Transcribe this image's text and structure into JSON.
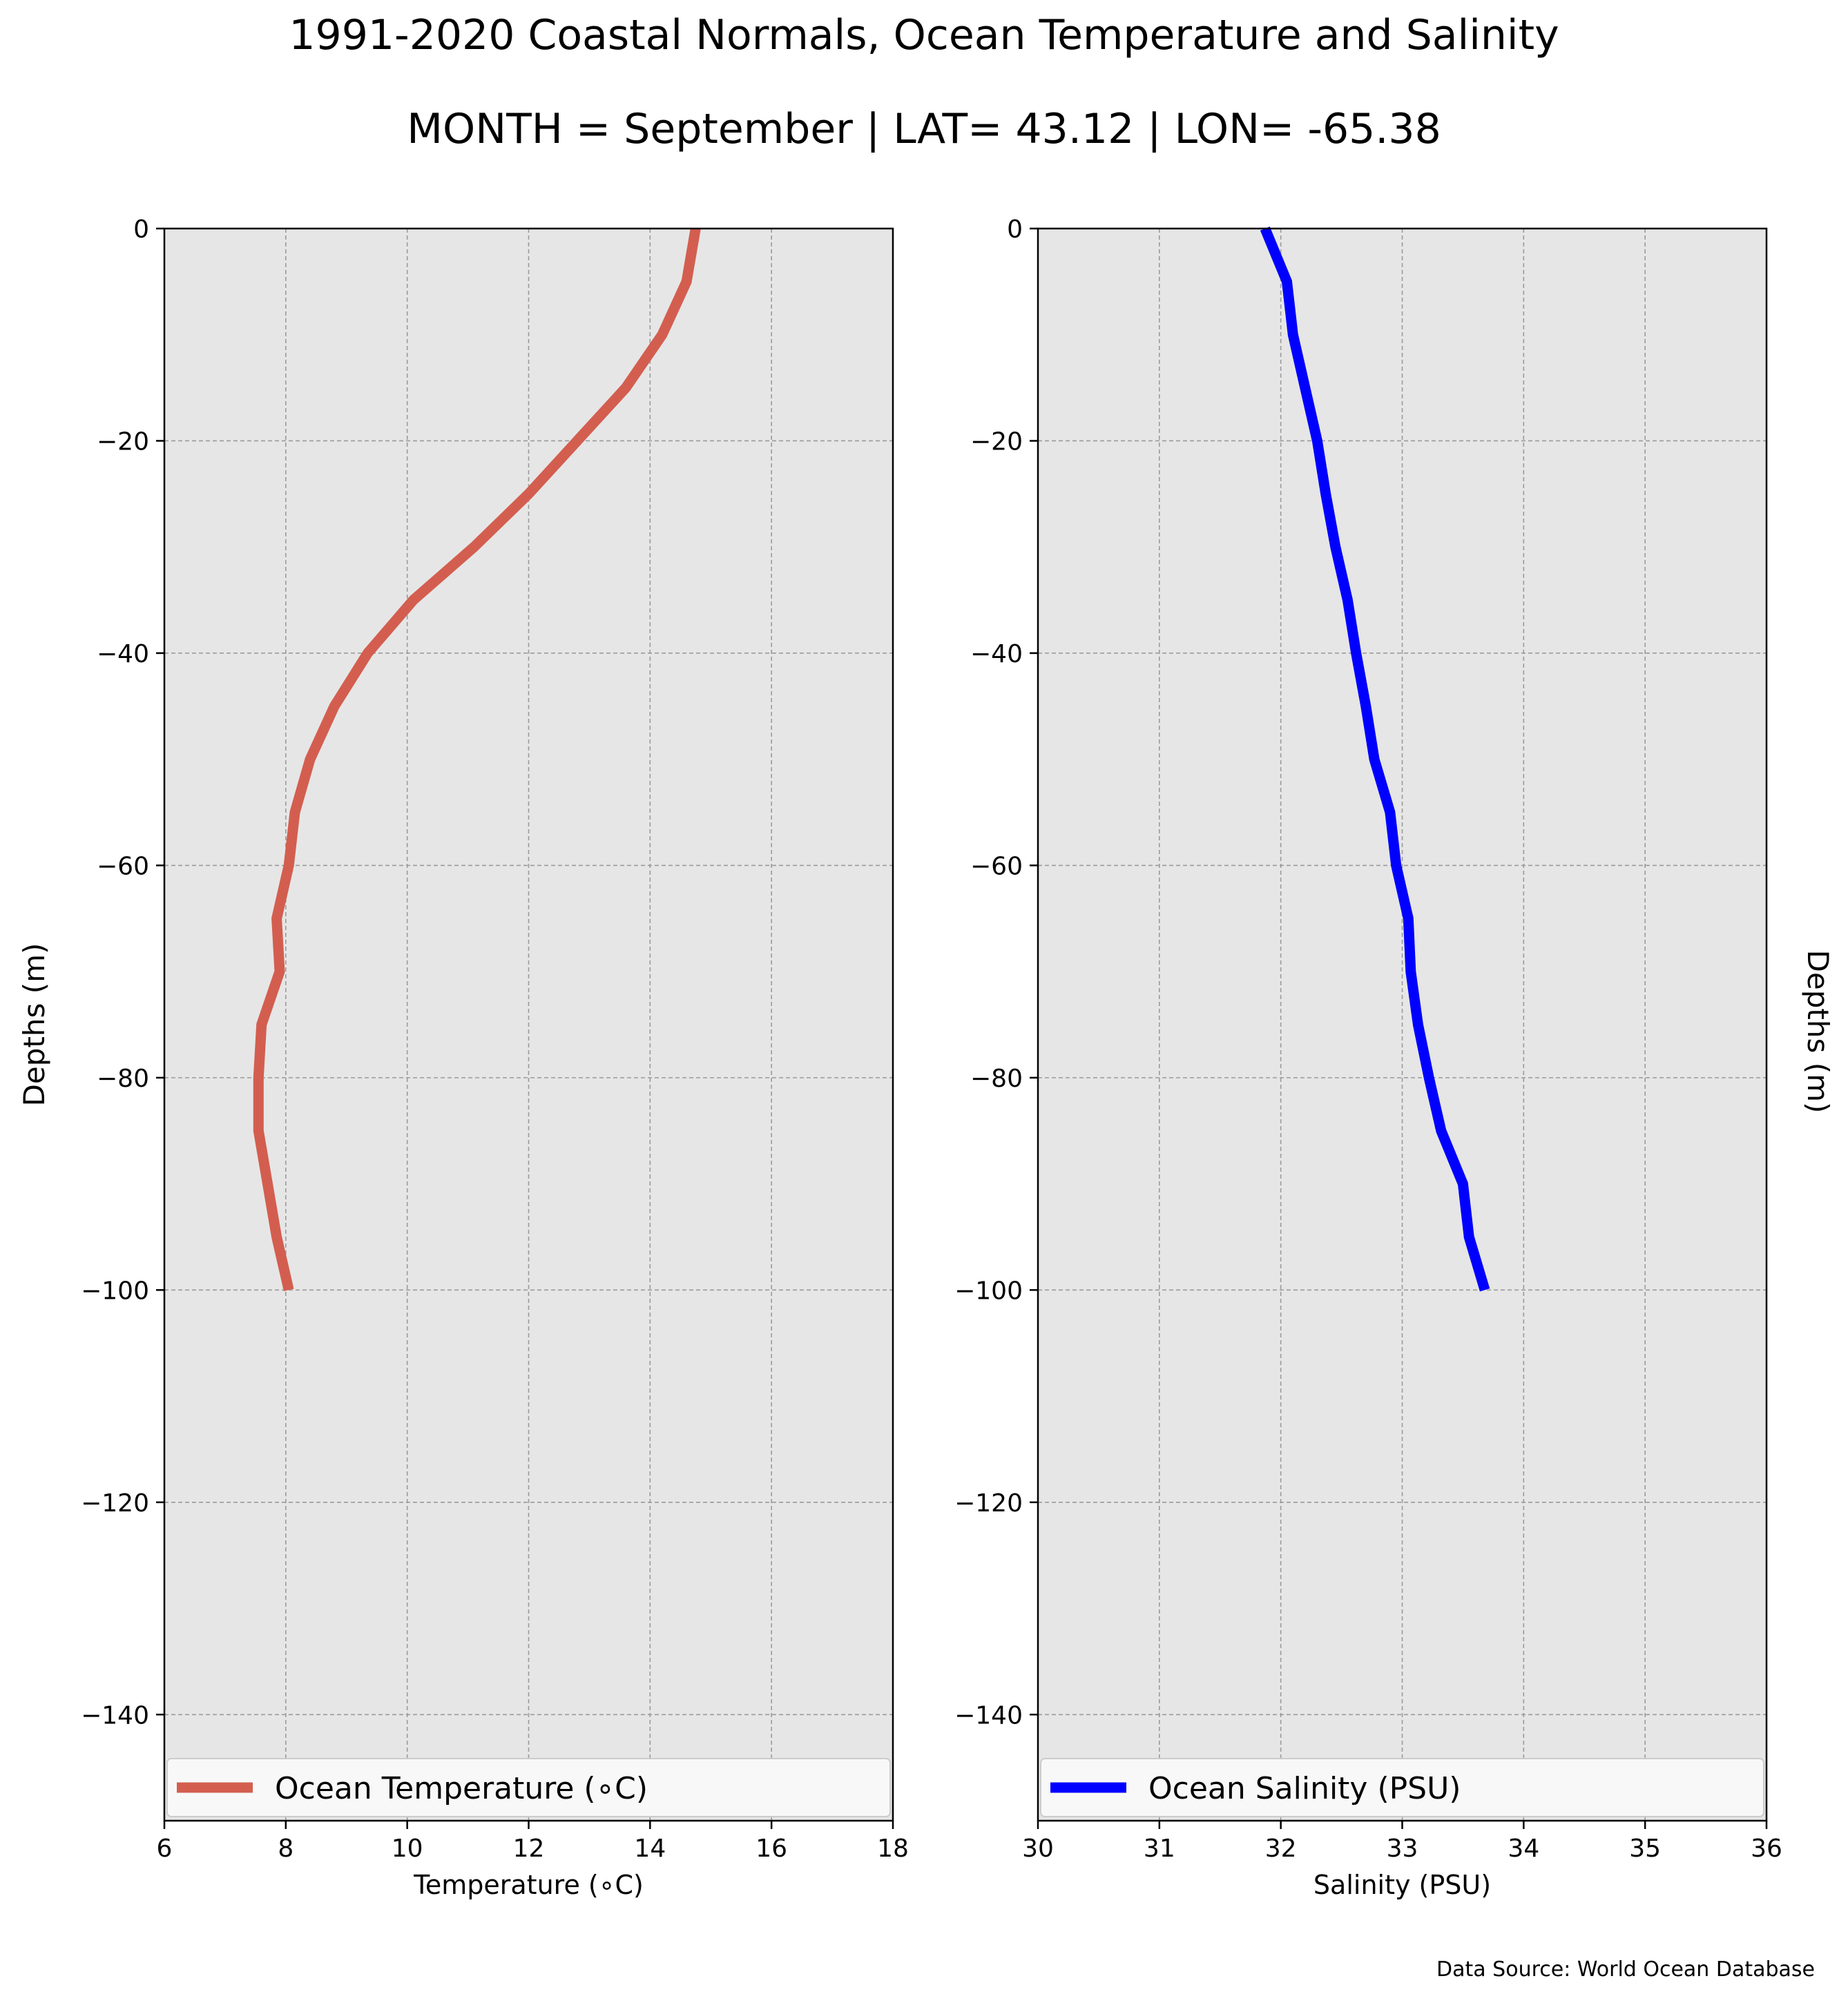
{
  "figure": {
    "title": "1991-2020 Coastal Normals, Ocean Temperature and Salinity",
    "subtitle": "MONTH = September | LAT= 43.12 | LON= -65.38",
    "source": "Data Source: World Ocean Database"
  },
  "chart_data": [
    {
      "type": "line",
      "title": "",
      "xlabel": "Temperature ($^\\circ$C)",
      "xlabel_display": "Temperature (∘C)",
      "ylabel": "Depths (m)",
      "xlim": [
        6,
        18
      ],
      "ylim": [
        -150,
        0
      ],
      "xticks": [
        6,
        8,
        10,
        12,
        14,
        16,
        18
      ],
      "yticks": [
        0,
        -20,
        -40,
        -60,
        -80,
        -100,
        -120,
        -140
      ],
      "ytick_labels": [
        "0",
        "−20",
        "−40",
        "−60",
        "−80",
        "−100",
        "−120",
        "−140"
      ],
      "grid": true,
      "legend_position": "bottom",
      "series": [
        {
          "name": "Ocean Temperature (∘C)",
          "color": "#d35e4f",
          "x": [
            14.75,
            14.6,
            14.2,
            13.6,
            12.8,
            12.0,
            11.1,
            10.1,
            9.35,
            8.8,
            8.4,
            8.15,
            8.05,
            7.85,
            7.9,
            7.6,
            7.55,
            7.55,
            7.7,
            7.85,
            8.05
          ],
          "y": [
            0,
            -5,
            -10,
            -15,
            -20,
            -25,
            -30,
            -35,
            -40,
            -45,
            -50,
            -55,
            -60,
            -65,
            -70,
            -75,
            -80,
            -85,
            -90,
            -95,
            -100
          ]
        }
      ]
    },
    {
      "type": "line",
      "title": "",
      "xlabel": "Salinity (PSU)",
      "ylabel": "Depths (m)",
      "xlim": [
        30,
        36
      ],
      "ylim": [
        -150,
        0
      ],
      "xticks": [
        30,
        31,
        32,
        33,
        34,
        35,
        36
      ],
      "yticks": [
        0,
        -20,
        -40,
        -60,
        -80,
        -100,
        -120,
        -140
      ],
      "ytick_labels": [
        "0",
        "−20",
        "−40",
        "−60",
        "−80",
        "−100",
        "−120",
        "−140"
      ],
      "grid": true,
      "legend_position": "bottom",
      "series": [
        {
          "name": "Ocean Salinity (PSU)",
          "color": "#0000ff",
          "x": [
            31.87,
            32.05,
            32.1,
            32.2,
            32.3,
            32.37,
            32.45,
            32.55,
            32.62,
            32.7,
            32.77,
            32.9,
            32.95,
            33.05,
            33.07,
            33.13,
            33.22,
            33.32,
            33.5,
            33.55,
            33.68
          ],
          "y": [
            0,
            -5,
            -10,
            -15,
            -20,
            -25,
            -30,
            -35,
            -40,
            -45,
            -50,
            -55,
            -60,
            -65,
            -70,
            -75,
            -80,
            -85,
            -90,
            -95,
            -100
          ]
        }
      ]
    }
  ]
}
